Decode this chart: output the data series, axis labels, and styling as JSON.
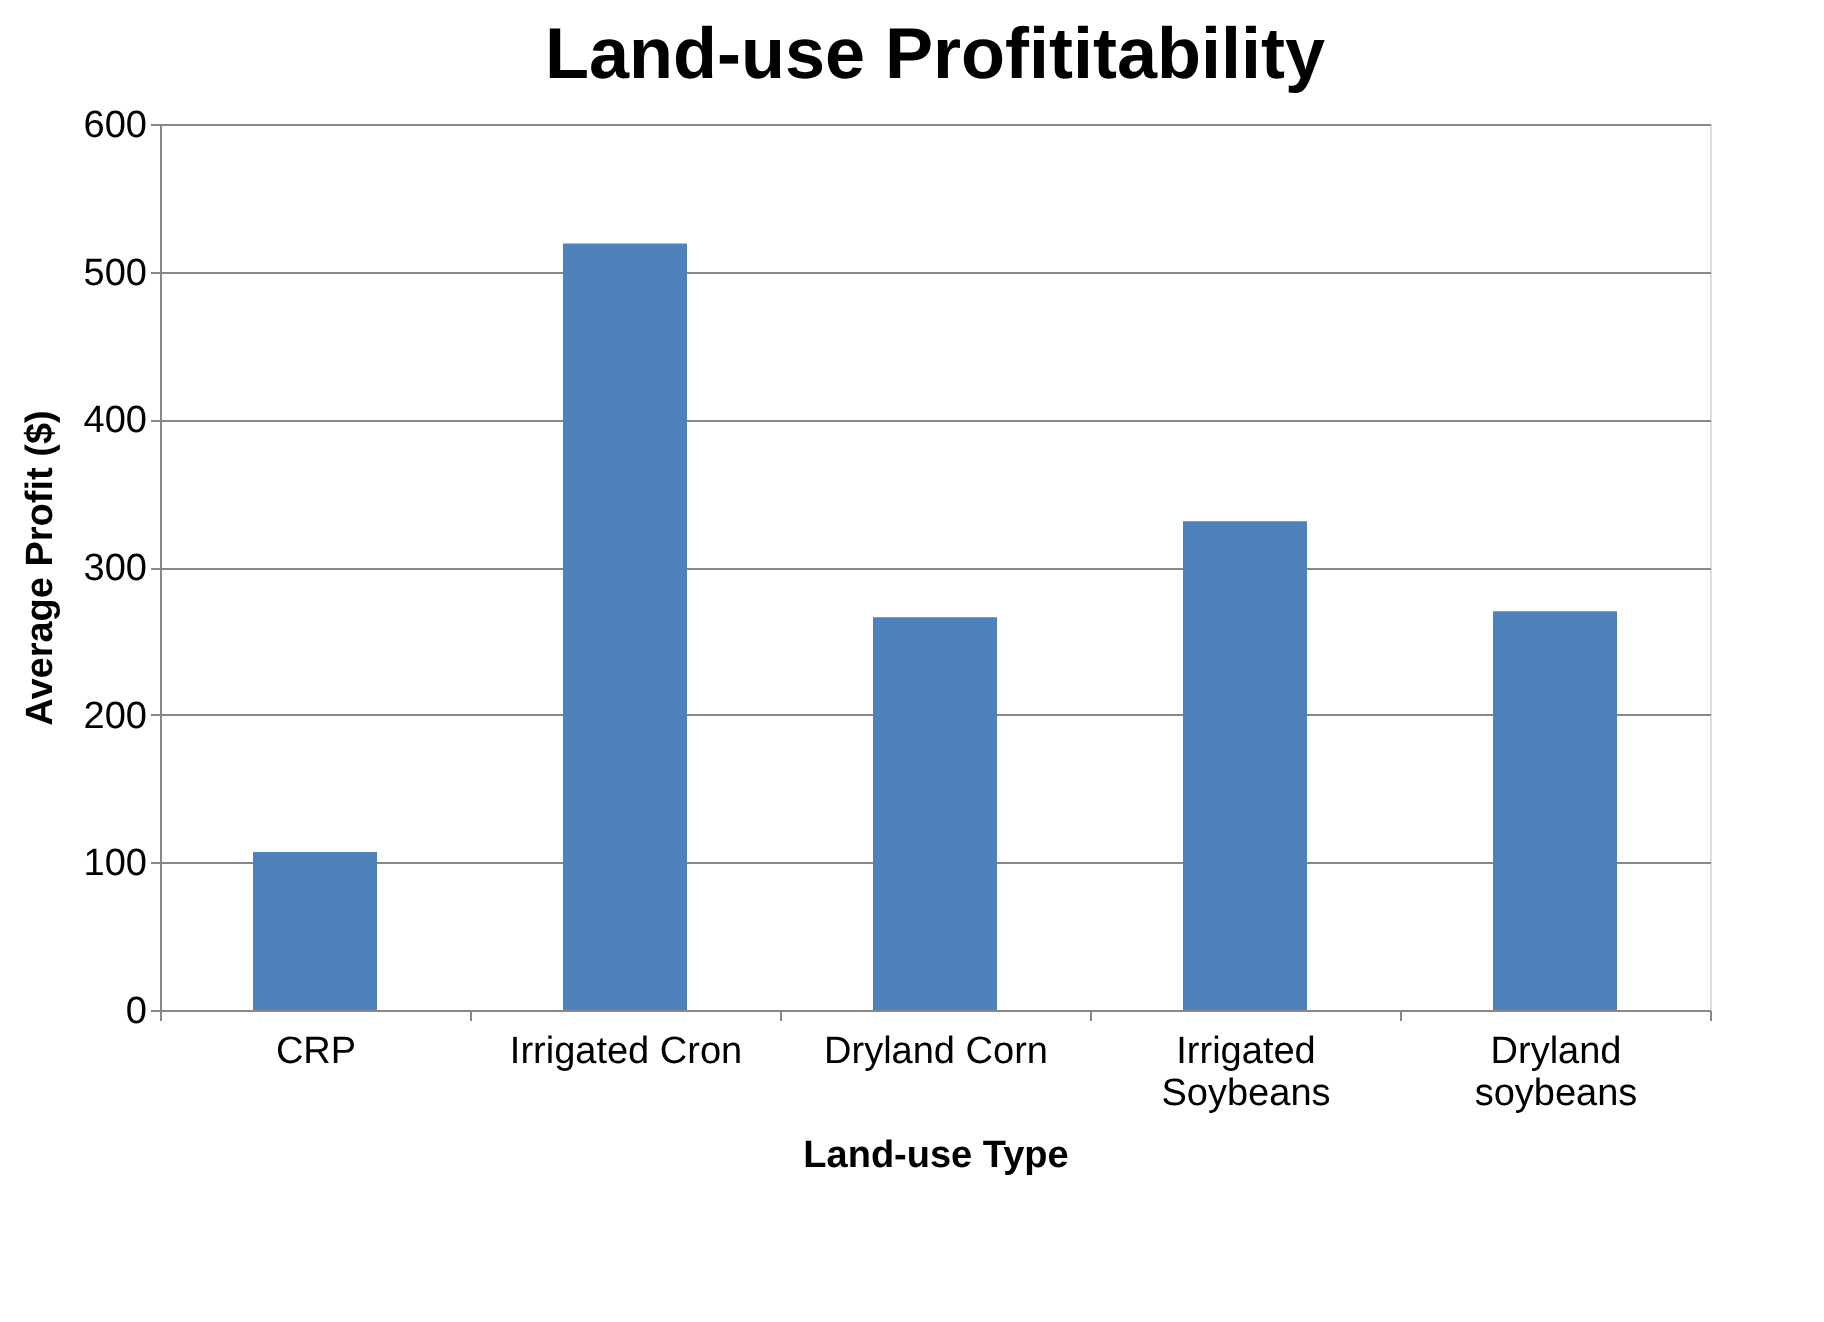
{
  "chart_data": {
    "type": "bar",
    "title": "Land-use Profititability",
    "xlabel": "Land-use Type",
    "ylabel": "Average Profit ($)",
    "categories": [
      "CRP",
      "Irrigated Cron",
      "Dryland Corn",
      "Irrigated Soybeans",
      "Dryland soybeans"
    ],
    "values": [
      107,
      519,
      266,
      331,
      270
    ],
    "color": "#4f81bd",
    "ylim": [
      0,
      600
    ],
    "yticks": [
      0,
      100,
      200,
      300,
      400,
      500,
      600
    ],
    "grid": "y",
    "legend": false
  }
}
